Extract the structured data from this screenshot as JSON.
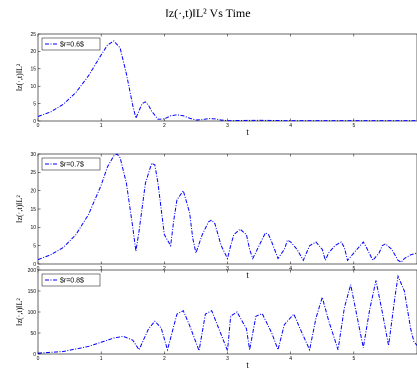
{
  "figure": {
    "title": "‖z(·,t)‖L² Vs Time",
    "accent": "#0000ff"
  },
  "chart_data": [
    {
      "type": "line",
      "xlabel": "t",
      "ylabel": "‖z(·,t)‖L²",
      "xlim": [
        0,
        6
      ],
      "ylim": [
        0,
        25
      ],
      "xticks": [
        0,
        1,
        2,
        3,
        4,
        5
      ],
      "yticks": [
        0,
        5,
        10,
        15,
        20,
        25
      ],
      "series": [
        {
          "name": "$r=0.6$",
          "x": [
            0,
            0.2,
            0.4,
            0.6,
            0.8,
            1.0,
            1.1,
            1.2,
            1.3,
            1.4,
            1.5,
            1.55,
            1.6,
            1.65,
            1.7,
            1.75,
            1.8,
            1.9,
            2.0,
            2.1,
            2.2,
            2.3,
            2.4,
            2.5,
            2.6,
            2.7,
            2.8,
            2.9,
            3.0,
            3.5,
            4.0,
            4.5,
            5.0,
            5.5,
            6.0
          ],
          "y": [
            1.3,
            2.6,
            4.8,
            8.2,
            13.0,
            19.0,
            21.8,
            23.0,
            21.0,
            13.5,
            4.5,
            0.8,
            3.0,
            5.0,
            5.5,
            4.5,
            2.8,
            0.5,
            0.6,
            1.5,
            1.8,
            1.5,
            0.8,
            0.3,
            0.4,
            0.7,
            0.6,
            0.3,
            0.1,
            0.2,
            0.1,
            0.1,
            0.1,
            0.1,
            0.1
          ]
        }
      ],
      "legend": "top-left"
    },
    {
      "type": "line",
      "xlabel": "t",
      "ylabel": "‖z(·,t)‖L²",
      "xlim": [
        0,
        6
      ],
      "ylim": [
        0,
        30
      ],
      "xticks": [
        0,
        1,
        2,
        3,
        4,
        5
      ],
      "yticks": [
        0,
        5,
        10,
        15,
        20,
        25,
        30
      ],
      "series": [
        {
          "name": "$r=0.7$",
          "x": [
            0,
            0.2,
            0.4,
            0.6,
            0.8,
            1.0,
            1.1,
            1.2,
            1.25,
            1.3,
            1.4,
            1.5,
            1.55,
            1.6,
            1.7,
            1.8,
            1.85,
            1.9,
            2.0,
            2.1,
            2.15,
            2.2,
            2.3,
            2.4,
            2.45,
            2.5,
            2.6,
            2.7,
            2.75,
            2.8,
            2.9,
            3.0,
            3.05,
            3.1,
            3.2,
            3.3,
            3.35,
            3.4,
            3.5,
            3.6,
            3.65,
            3.7,
            3.8,
            3.9,
            3.95,
            4.0,
            4.1,
            4.2,
            4.25,
            4.3,
            4.4,
            4.5,
            4.55,
            4.6,
            4.7,
            4.8,
            4.85,
            4.9,
            5.0,
            5.1,
            5.15,
            5.2,
            5.3,
            5.4,
            5.45,
            5.5,
            5.6,
            5.7,
            5.75,
            5.8,
            5.9,
            6.0
          ],
          "y": [
            1.2,
            2.5,
            4.5,
            8.0,
            13.5,
            21.5,
            26.5,
            29.5,
            30.0,
            29.0,
            22.0,
            10.0,
            3.5,
            9.0,
            22.0,
            27.5,
            27.0,
            22.0,
            8.0,
            5.0,
            12.0,
            17.5,
            20.0,
            14.0,
            7.0,
            3.0,
            8.0,
            11.5,
            12.0,
            11.0,
            5.0,
            1.5,
            5.0,
            8.0,
            9.5,
            8.0,
            4.0,
            1.5,
            5.0,
            8.5,
            8.0,
            6.0,
            1.5,
            4.0,
            6.5,
            6.0,
            4.0,
            1.0,
            3.0,
            5.0,
            6.0,
            4.0,
            1.0,
            3.0,
            5.0,
            6.0,
            4.5,
            1.0,
            3.0,
            5.0,
            6.0,
            4.5,
            1.0,
            3.0,
            5.0,
            5.5,
            4.0,
            1.0,
            0.5,
            1.5,
            2.5,
            3.0
          ]
        }
      ],
      "legend": "top-left"
    },
    {
      "type": "line",
      "xlabel": "t",
      "ylabel": "‖z(·,t)‖L²",
      "xlim": [
        0,
        6
      ],
      "ylim": [
        0,
        200
      ],
      "xticks": [
        0,
        1,
        2,
        3,
        4,
        5
      ],
      "yticks": [
        0,
        50,
        100,
        150,
        200
      ],
      "series": [
        {
          "name": "$r=0.8$",
          "x": [
            0,
            0.4,
            0.8,
            1.0,
            1.2,
            1.35,
            1.5,
            1.6,
            1.75,
            1.85,
            1.95,
            2.05,
            2.2,
            2.3,
            2.4,
            2.55,
            2.65,
            2.75,
            2.85,
            3.0,
            3.05,
            3.15,
            3.3,
            3.35,
            3.45,
            3.55,
            3.7,
            3.8,
            3.9,
            4.05,
            4.15,
            4.3,
            4.4,
            4.5,
            4.6,
            4.75,
            4.85,
            4.95,
            5.05,
            5.15,
            5.25,
            5.35,
            5.45,
            5.55,
            5.65,
            5.7,
            5.8,
            5.9,
            5.95,
            6.0
          ],
          "y": [
            2,
            6,
            18,
            28,
            38,
            42,
            33,
            10,
            60,
            78,
            62,
            10,
            95,
            103,
            68,
            8,
            95,
            103,
            65,
            8,
            90,
            100,
            60,
            10,
            90,
            96,
            50,
            10,
            70,
            95,
            60,
            10,
            85,
            135,
            80,
            10,
            110,
            165,
            90,
            15,
            105,
            175,
            100,
            20,
            135,
            185,
            150,
            60,
            30,
            20
          ]
        }
      ],
      "legend": "top-left"
    }
  ]
}
